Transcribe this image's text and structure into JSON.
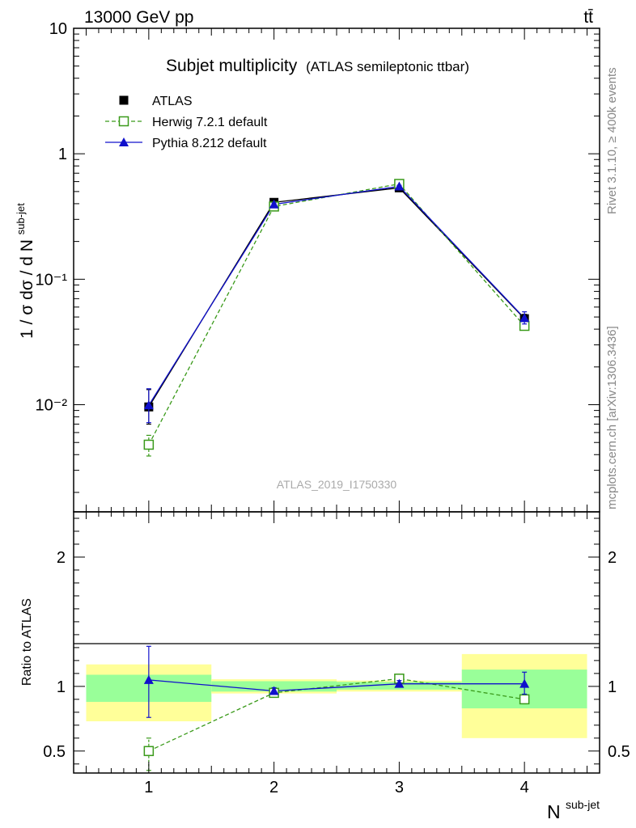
{
  "header": {
    "energy_label": "13000 GeV pp",
    "process_label": "tt̄"
  },
  "side_labels": {
    "rivet": "Rivet 3.1.10, ≥ 400k events",
    "mcplots": "mcplots.cern.ch [arXiv:1306.3436]"
  },
  "analysis_id": "ATLAS_2019_I1750330",
  "main_title": "Subjet multiplicity",
  "main_subtitle": "(ATLAS semileptonic ttbar)",
  "colors": {
    "data": "#000000",
    "herwig": "#3a9a1a",
    "pythia": "#1010cc",
    "band_inner": "#99ff99",
    "band_outer": "#ffff99"
  },
  "chart_data": [
    {
      "type": "scatter",
      "title": "Subjet multiplicity",
      "subtitle": "(ATLAS semileptonic ttbar)",
      "ylabel": "1 / σ dσ / d N^sub-jet",
      "y_scale": "log",
      "ylim": [
        0.0014,
        10
      ],
      "xlim": [
        0.4,
        4.6
      ],
      "y_ticks": [
        {
          "value": 10,
          "label": "10"
        },
        {
          "value": 1,
          "label": "1"
        },
        {
          "value": 0.1,
          "label": "10⁻¹"
        },
        {
          "value": 0.01,
          "label": "10⁻²"
        }
      ],
      "legend_position": "top-left",
      "series": [
        {
          "name": "ATLAS",
          "marker": "filled-square",
          "x": [
            1,
            2,
            3,
            4
          ],
          "y": [
            0.0096,
            0.41,
            0.535,
            0.0485
          ],
          "yerr_low": [
            0.0026,
            0.02,
            0.02,
            0.004
          ],
          "yerr_high": [
            0.0036,
            0.02,
            0.02,
            0.004
          ]
        },
        {
          "name": "Herwig 7.2.1 default",
          "marker": "open-square",
          "line": "dashed",
          "x": [
            1,
            2,
            3,
            4
          ],
          "y": [
            0.0048,
            0.38,
            0.575,
            0.0425
          ],
          "yerr_low": [
            0.0009,
            0.01,
            0.01,
            0.002
          ],
          "yerr_high": [
            0.0009,
            0.01,
            0.01,
            0.002
          ]
        },
        {
          "name": "Pythia 8.212 default",
          "marker": "filled-triangle",
          "line": "solid",
          "x": [
            1,
            2,
            3,
            4
          ],
          "y": [
            0.0099,
            0.395,
            0.55,
            0.049
          ],
          "yerr_low": [
            0.0027,
            0.01,
            0.01,
            0.005
          ],
          "yerr_high": [
            0.0035,
            0.01,
            0.01,
            0.006
          ]
        }
      ]
    },
    {
      "type": "scatter",
      "ylabel": "Ratio to ATLAS",
      "xlabel": "N^sub-jet",
      "ylim": [
        0.33,
        2.35
      ],
      "xlim": [
        0.4,
        4.6
      ],
      "x_ticks": [
        {
          "value": 1,
          "label": "1"
        },
        {
          "value": 2,
          "label": "2"
        },
        {
          "value": 3,
          "label": "3"
        },
        {
          "value": 4,
          "label": "4"
        }
      ],
      "y_ticks": [
        {
          "value": 0.5,
          "label": "0.5"
        },
        {
          "value": 1,
          "label": "1"
        },
        {
          "value": 2,
          "label": "2"
        }
      ],
      "bands": [
        {
          "xlo": 0.5,
          "xhi": 1.5,
          "inner": [
            0.88,
            1.09
          ],
          "outer": [
            0.73,
            1.17
          ]
        },
        {
          "xlo": 1.5,
          "xhi": 2.5,
          "inner": [
            0.96,
            1.04
          ],
          "outer": [
            0.945,
            1.055
          ]
        },
        {
          "xlo": 2.5,
          "xhi": 3.5,
          "inner": [
            0.975,
            1.035
          ],
          "outer": [
            0.96,
            1.045
          ]
        },
        {
          "xlo": 3.5,
          "xhi": 4.5,
          "inner": [
            0.83,
            1.13
          ],
          "outer": [
            0.6,
            1.25
          ]
        }
      ],
      "series": [
        {
          "name": "Herwig 7.2.1 default",
          "marker": "open-square",
          "line": "dashed",
          "x": [
            1,
            2,
            3,
            4
          ],
          "y": [
            0.5,
            0.95,
            1.06,
            0.9
          ],
          "yerr_low": [
            0.15,
            0.01,
            0.01,
            0.035
          ],
          "yerr_high": [
            0.1,
            0.01,
            0.01,
            0.035
          ]
        },
        {
          "name": "Pythia 8.212 default",
          "marker": "filled-triangle",
          "line": "solid",
          "x": [
            1,
            2,
            3,
            4
          ],
          "y": [
            1.05,
            0.965,
            1.02,
            1.02
          ],
          "yerr_low": [
            0.29,
            0.025,
            0.025,
            0.08
          ],
          "yerr_high": [
            0.26,
            0.025,
            0.025,
            0.09
          ]
        }
      ]
    }
  ]
}
